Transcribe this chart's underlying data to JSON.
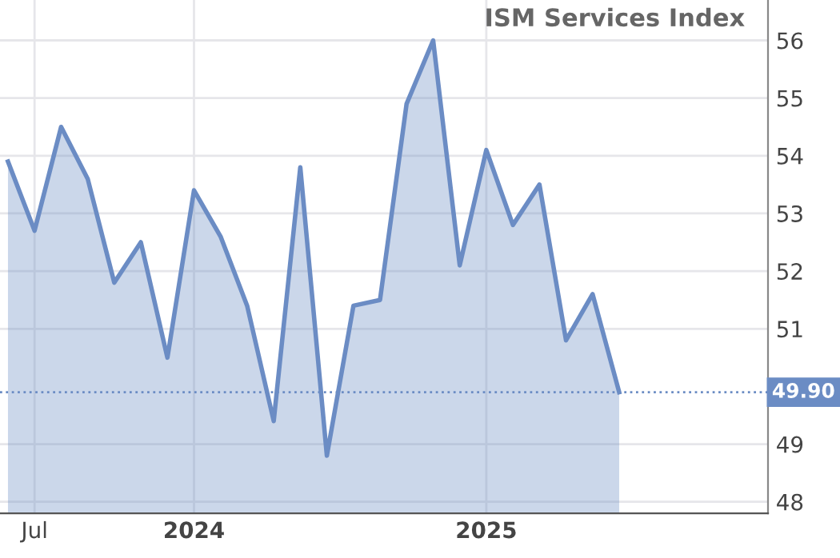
{
  "chart_data": {
    "type": "area",
    "title": "ISM Services Index",
    "categories": [
      null,
      "Jul",
      null,
      null,
      null,
      null,
      null,
      "2024",
      null,
      null,
      null,
      null,
      null,
      null,
      null,
      null,
      null,
      null,
      "2025",
      null,
      null,
      null,
      null,
      null,
      null,
      null,
      null,
      null,
      null
    ],
    "series": [
      {
        "color": "#6b8cc4",
        "values": [
          53.9,
          52.7,
          54.5,
          53.6,
          51.8,
          52.5,
          50.5,
          53.4,
          52.6,
          51.4,
          49.4,
          53.8,
          48.8,
          51.4,
          51.5,
          54.9,
          56.0,
          52.1,
          54.1,
          52.8,
          53.5,
          50.8,
          51.6,
          49.9,
          null,
          null,
          null,
          null,
          null
        ]
      }
    ],
    "ylim": [
      47.8,
      56.7
    ],
    "yticks": [
      48,
      49,
      51,
      52,
      53,
      54,
      55,
      56
    ],
    "ref_lines": [
      {
        "axis": "y",
        "value": 49.9,
        "label": "49.90",
        "color": "#6b8cc4",
        "line_style": "dotted"
      }
    ],
    "grid": true,
    "legend": false
  }
}
